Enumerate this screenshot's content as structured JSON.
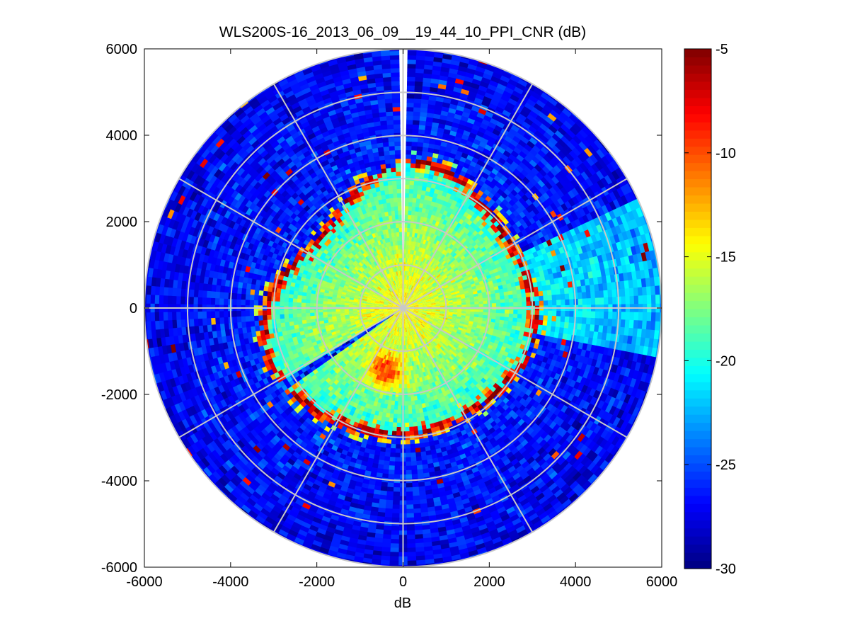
{
  "chart_data": {
    "type": "heatmap",
    "subtype": "polar-ppi",
    "title": "WLS200S-16_2013_06_09__19_44_10_PPI_CNR (dB)",
    "xlabel": "dB",
    "ylabel": "",
    "xlim": [
      -6000,
      6000
    ],
    "ylim": [
      -6000,
      6000
    ],
    "x_ticks": [
      -6000,
      -4000,
      -2000,
      0,
      2000,
      4000,
      6000
    ],
    "y_ticks": [
      -6000,
      -4000,
      -2000,
      0,
      2000,
      4000,
      6000
    ],
    "x_tick_labels": [
      "-6000",
      "-4000",
      "-2000",
      "0",
      "2000",
      "4000",
      "6000"
    ],
    "y_tick_labels": [
      "-6000",
      "-4000",
      "-2000",
      "0",
      "2000",
      "4000",
      "6000"
    ],
    "max_range": 6000,
    "range_rings": [
      1000,
      2000,
      3000,
      4000,
      5000,
      6000
    ],
    "spoke_angles_deg": [
      0,
      30,
      60,
      90,
      120,
      150,
      180,
      210,
      240,
      270,
      300,
      330
    ],
    "colorbar": {
      "colormap": "jet",
      "min": -30,
      "max": -5,
      "ticks": [
        -30,
        -25,
        -20,
        -15,
        -10,
        -5
      ],
      "tick_labels": [
        "-30",
        "-25",
        "-20",
        "-15",
        "-10",
        "-5"
      ]
    },
    "field_description": {
      "near_range_cnr_db": -14,
      "far_range_cnr_db": -26,
      "hard_target_ring_range": 3000,
      "hard_target_cnr_db": -6,
      "south_patch": {
        "azimuth_deg": 195,
        "range": 1500,
        "cnr_db": -10
      },
      "blanked_sector_deg": [
        -1.5,
        1.5
      ],
      "east_sector_deg": [
        65,
        100
      ],
      "east_sector_cnr_db": -21
    }
  }
}
